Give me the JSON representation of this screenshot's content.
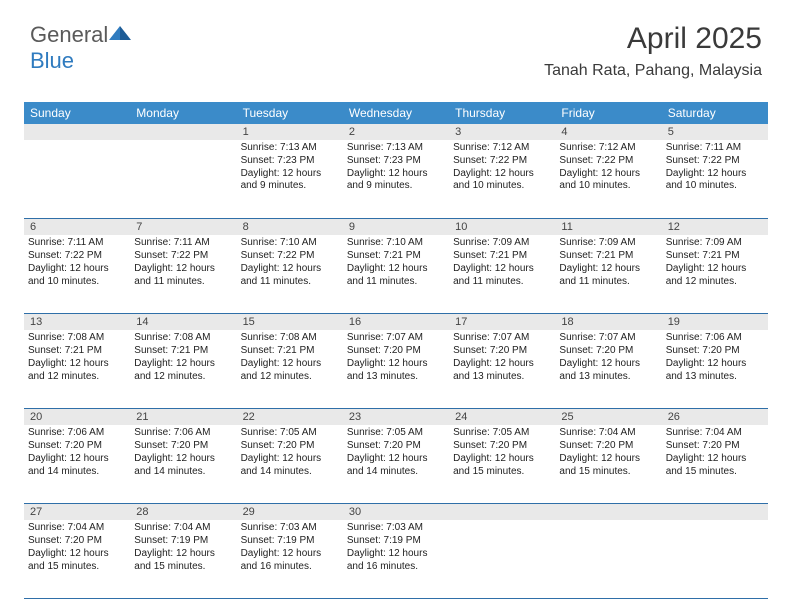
{
  "brand": {
    "part1": "General",
    "part2": "Blue"
  },
  "title": "April 2025",
  "location": "Tanah Rata, Pahang, Malaysia",
  "calendar": {
    "type": "calendar-table",
    "header_bg": "#3b8bc9",
    "header_text_color": "#ffffff",
    "row_divider_color": "#2f6fa8",
    "daynum_bg": "#e9e9e9",
    "body_text_color": "#222222",
    "font_size_header": 12,
    "font_size_detail": 10,
    "columns": [
      "Sunday",
      "Monday",
      "Tuesday",
      "Wednesday",
      "Thursday",
      "Friday",
      "Saturday"
    ],
    "weeks": [
      [
        null,
        null,
        {
          "n": "1",
          "sr": "Sunrise: 7:13 AM",
          "ss": "Sunset: 7:23 PM",
          "d1": "Daylight: 12 hours",
          "d2": "and 9 minutes."
        },
        {
          "n": "2",
          "sr": "Sunrise: 7:13 AM",
          "ss": "Sunset: 7:23 PM",
          "d1": "Daylight: 12 hours",
          "d2": "and 9 minutes."
        },
        {
          "n": "3",
          "sr": "Sunrise: 7:12 AM",
          "ss": "Sunset: 7:22 PM",
          "d1": "Daylight: 12 hours",
          "d2": "and 10 minutes."
        },
        {
          "n": "4",
          "sr": "Sunrise: 7:12 AM",
          "ss": "Sunset: 7:22 PM",
          "d1": "Daylight: 12 hours",
          "d2": "and 10 minutes."
        },
        {
          "n": "5",
          "sr": "Sunrise: 7:11 AM",
          "ss": "Sunset: 7:22 PM",
          "d1": "Daylight: 12 hours",
          "d2": "and 10 minutes."
        }
      ],
      [
        {
          "n": "6",
          "sr": "Sunrise: 7:11 AM",
          "ss": "Sunset: 7:22 PM",
          "d1": "Daylight: 12 hours",
          "d2": "and 10 minutes."
        },
        {
          "n": "7",
          "sr": "Sunrise: 7:11 AM",
          "ss": "Sunset: 7:22 PM",
          "d1": "Daylight: 12 hours",
          "d2": "and 11 minutes."
        },
        {
          "n": "8",
          "sr": "Sunrise: 7:10 AM",
          "ss": "Sunset: 7:22 PM",
          "d1": "Daylight: 12 hours",
          "d2": "and 11 minutes."
        },
        {
          "n": "9",
          "sr": "Sunrise: 7:10 AM",
          "ss": "Sunset: 7:21 PM",
          "d1": "Daylight: 12 hours",
          "d2": "and 11 minutes."
        },
        {
          "n": "10",
          "sr": "Sunrise: 7:09 AM",
          "ss": "Sunset: 7:21 PM",
          "d1": "Daylight: 12 hours",
          "d2": "and 11 minutes."
        },
        {
          "n": "11",
          "sr": "Sunrise: 7:09 AM",
          "ss": "Sunset: 7:21 PM",
          "d1": "Daylight: 12 hours",
          "d2": "and 11 minutes."
        },
        {
          "n": "12",
          "sr": "Sunrise: 7:09 AM",
          "ss": "Sunset: 7:21 PM",
          "d1": "Daylight: 12 hours",
          "d2": "and 12 minutes."
        }
      ],
      [
        {
          "n": "13",
          "sr": "Sunrise: 7:08 AM",
          "ss": "Sunset: 7:21 PM",
          "d1": "Daylight: 12 hours",
          "d2": "and 12 minutes."
        },
        {
          "n": "14",
          "sr": "Sunrise: 7:08 AM",
          "ss": "Sunset: 7:21 PM",
          "d1": "Daylight: 12 hours",
          "d2": "and 12 minutes."
        },
        {
          "n": "15",
          "sr": "Sunrise: 7:08 AM",
          "ss": "Sunset: 7:21 PM",
          "d1": "Daylight: 12 hours",
          "d2": "and 12 minutes."
        },
        {
          "n": "16",
          "sr": "Sunrise: 7:07 AM",
          "ss": "Sunset: 7:20 PM",
          "d1": "Daylight: 12 hours",
          "d2": "and 13 minutes."
        },
        {
          "n": "17",
          "sr": "Sunrise: 7:07 AM",
          "ss": "Sunset: 7:20 PM",
          "d1": "Daylight: 12 hours",
          "d2": "and 13 minutes."
        },
        {
          "n": "18",
          "sr": "Sunrise: 7:07 AM",
          "ss": "Sunset: 7:20 PM",
          "d1": "Daylight: 12 hours",
          "d2": "and 13 minutes."
        },
        {
          "n": "19",
          "sr": "Sunrise: 7:06 AM",
          "ss": "Sunset: 7:20 PM",
          "d1": "Daylight: 12 hours",
          "d2": "and 13 minutes."
        }
      ],
      [
        {
          "n": "20",
          "sr": "Sunrise: 7:06 AM",
          "ss": "Sunset: 7:20 PM",
          "d1": "Daylight: 12 hours",
          "d2": "and 14 minutes."
        },
        {
          "n": "21",
          "sr": "Sunrise: 7:06 AM",
          "ss": "Sunset: 7:20 PM",
          "d1": "Daylight: 12 hours",
          "d2": "and 14 minutes."
        },
        {
          "n": "22",
          "sr": "Sunrise: 7:05 AM",
          "ss": "Sunset: 7:20 PM",
          "d1": "Daylight: 12 hours",
          "d2": "and 14 minutes."
        },
        {
          "n": "23",
          "sr": "Sunrise: 7:05 AM",
          "ss": "Sunset: 7:20 PM",
          "d1": "Daylight: 12 hours",
          "d2": "and 14 minutes."
        },
        {
          "n": "24",
          "sr": "Sunrise: 7:05 AM",
          "ss": "Sunset: 7:20 PM",
          "d1": "Daylight: 12 hours",
          "d2": "and 15 minutes."
        },
        {
          "n": "25",
          "sr": "Sunrise: 7:04 AM",
          "ss": "Sunset: 7:20 PM",
          "d1": "Daylight: 12 hours",
          "d2": "and 15 minutes."
        },
        {
          "n": "26",
          "sr": "Sunrise: 7:04 AM",
          "ss": "Sunset: 7:20 PM",
          "d1": "Daylight: 12 hours",
          "d2": "and 15 minutes."
        }
      ],
      [
        {
          "n": "27",
          "sr": "Sunrise: 7:04 AM",
          "ss": "Sunset: 7:20 PM",
          "d1": "Daylight: 12 hours",
          "d2": "and 15 minutes."
        },
        {
          "n": "28",
          "sr": "Sunrise: 7:04 AM",
          "ss": "Sunset: 7:19 PM",
          "d1": "Daylight: 12 hours",
          "d2": "and 15 minutes."
        },
        {
          "n": "29",
          "sr": "Sunrise: 7:03 AM",
          "ss": "Sunset: 7:19 PM",
          "d1": "Daylight: 12 hours",
          "d2": "and 16 minutes."
        },
        {
          "n": "30",
          "sr": "Sunrise: 7:03 AM",
          "ss": "Sunset: 7:19 PM",
          "d1": "Daylight: 12 hours",
          "d2": "and 16 minutes."
        },
        null,
        null,
        null
      ]
    ]
  }
}
